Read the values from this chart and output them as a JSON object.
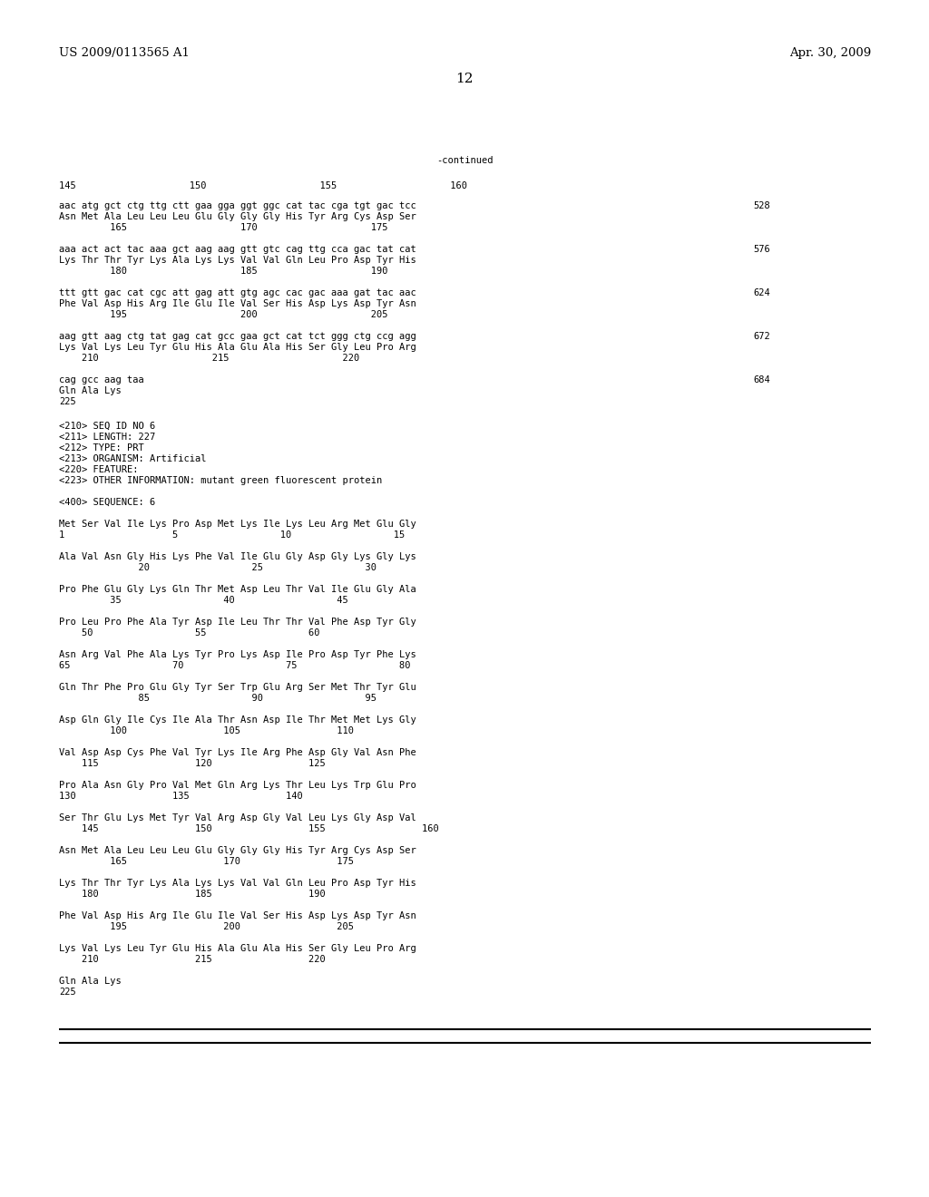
{
  "header_left": "US 2009/0113565 A1",
  "header_right": "Apr. 30, 2009",
  "page_number": "12",
  "continued_label": "-continued",
  "background_color": "#ffffff",
  "text_color": "#000000",
  "font_size": 7.5,
  "mono_font": "DejaVu Sans Mono",
  "header_font_size": 9.5,
  "page_num_font_size": 11
}
